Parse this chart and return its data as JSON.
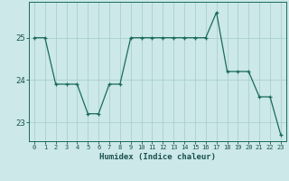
{
  "x": [
    0,
    1,
    2,
    3,
    4,
    5,
    6,
    7,
    8,
    9,
    10,
    11,
    12,
    13,
    14,
    15,
    16,
    17,
    18,
    19,
    20,
    21,
    22,
    23
  ],
  "y": [
    25.0,
    25.0,
    23.9,
    23.9,
    23.9,
    23.2,
    23.2,
    23.9,
    23.9,
    25.0,
    25.0,
    25.0,
    25.0,
    25.0,
    25.0,
    25.0,
    25.0,
    25.6,
    24.2,
    24.2,
    24.2,
    23.6,
    23.6,
    22.7
  ],
  "title": "",
  "xlabel": "Humidex (Indice chaleur)",
  "ylabel": "",
  "yticks": [
    23,
    24,
    25
  ],
  "xticks": [
    0,
    1,
    2,
    3,
    4,
    5,
    6,
    7,
    8,
    9,
    10,
    11,
    12,
    13,
    14,
    15,
    16,
    17,
    18,
    19,
    20,
    21,
    22,
    23
  ],
  "line_color": "#1a6b5a",
  "marker": "+",
  "marker_color": "#1a6b5a",
  "bg_color": "#cce8e8",
  "grid_color": "#aacfcf",
  "axis_color": "#1a6b5a",
  "tick_color": "#1a5050",
  "label_color": "#1a5050",
  "ylim": [
    22.55,
    25.85
  ],
  "xlim": [
    -0.5,
    23.5
  ]
}
